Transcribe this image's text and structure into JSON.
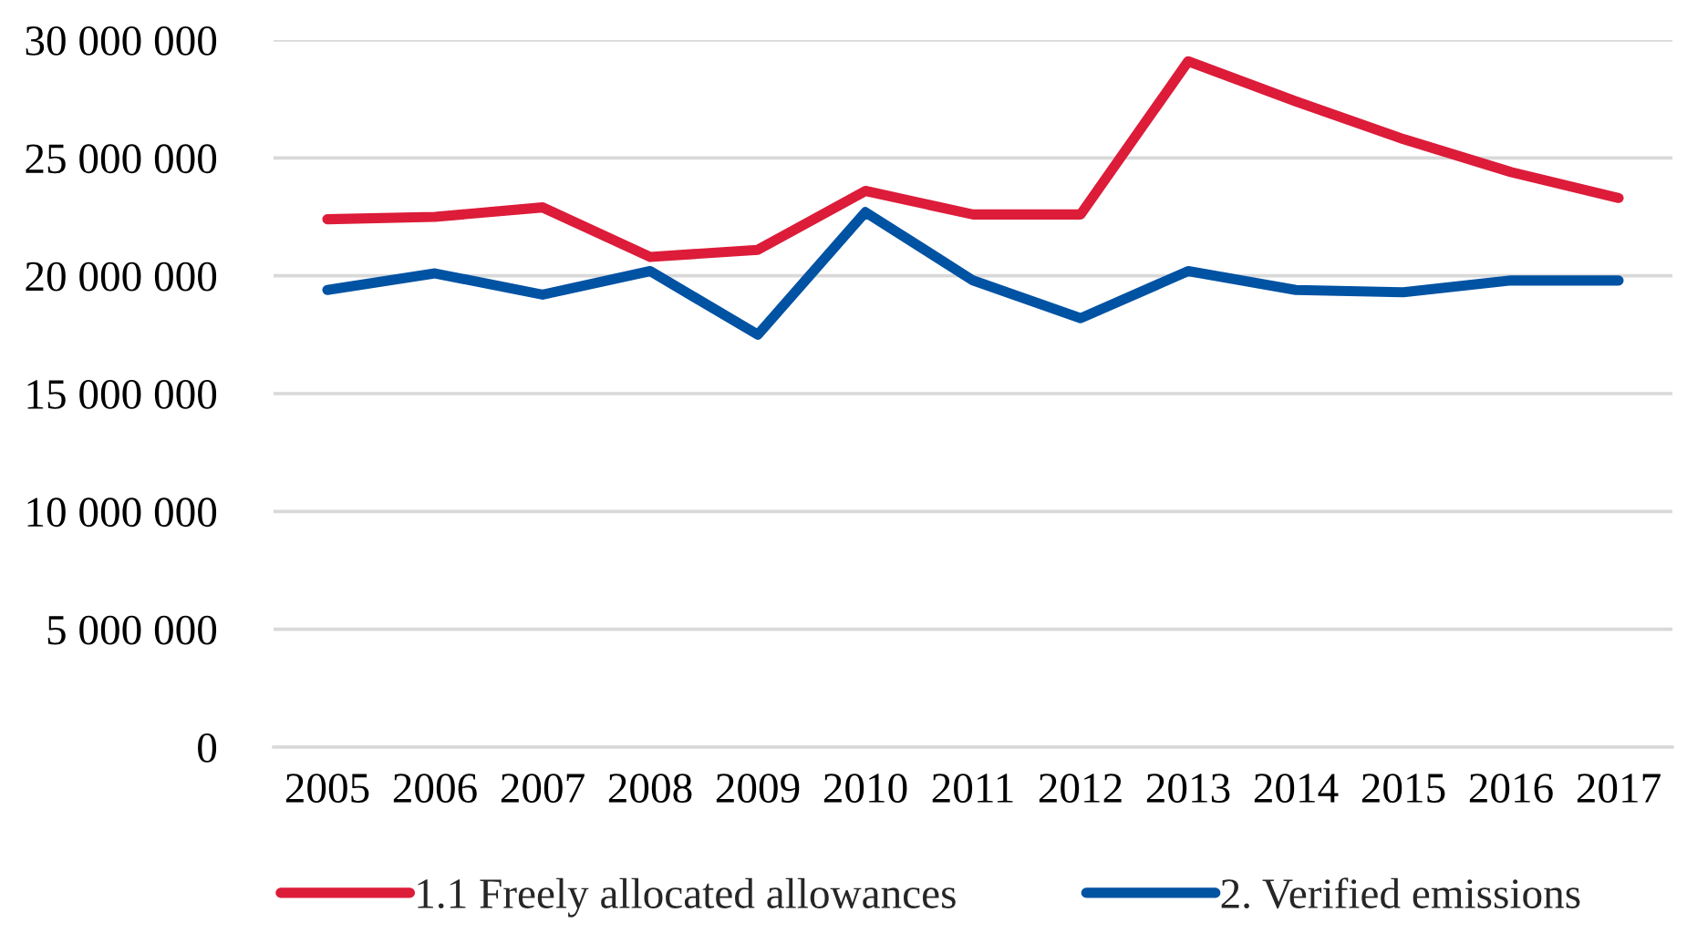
{
  "chart_data": {
    "type": "line",
    "categories": [
      "2005",
      "2006",
      "2007",
      "2008",
      "2009",
      "2010",
      "2011",
      "2012",
      "2013",
      "2014",
      "2015",
      "2016",
      "2017"
    ],
    "series": [
      {
        "name": "1.1 Freely allocated allowances",
        "color": "#dc1c39",
        "values": [
          22400000,
          22500000,
          22900000,
          20800000,
          21100000,
          23600000,
          22600000,
          22600000,
          29100000,
          27400000,
          25800000,
          24400000,
          23300000
        ]
      },
      {
        "name": "2. Verified emissions",
        "color": "#0052a3",
        "values": [
          19400000,
          20100000,
          19200000,
          20200000,
          17500000,
          22700000,
          19800000,
          18200000,
          20200000,
          19400000,
          19300000,
          19800000,
          19800000
        ]
      }
    ],
    "ylim": [
      0,
      30000000
    ],
    "yticks": [
      {
        "value": 0,
        "label": "0"
      },
      {
        "value": 5000000,
        "label": "5 000 000"
      },
      {
        "value": 10000000,
        "label": "10 000 000"
      },
      {
        "value": 15000000,
        "label": "15 000 000"
      },
      {
        "value": 20000000,
        "label": "20 000 000"
      },
      {
        "value": 25000000,
        "label": "25 000 000"
      },
      {
        "value": 30000000,
        "label": "30 000 000"
      }
    ],
    "grid": "y",
    "legend": "bottom",
    "marker": "none",
    "line_style": "solid"
  }
}
